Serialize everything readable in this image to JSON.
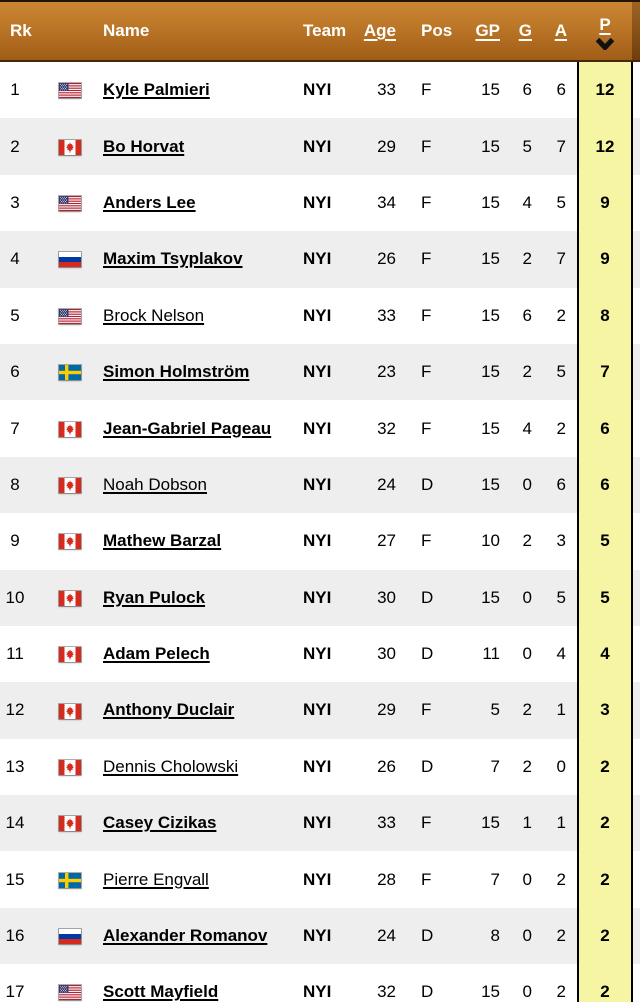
{
  "table": {
    "columns": [
      {
        "key": "rank",
        "label": "Rk",
        "sortable": false
      },
      {
        "key": "flag",
        "label": "",
        "sortable": false
      },
      {
        "key": "name",
        "label": "Name",
        "sortable": false
      },
      {
        "key": "team",
        "label": "Team",
        "sortable": false
      },
      {
        "key": "age",
        "label": "Age",
        "sortable": true
      },
      {
        "key": "pos",
        "label": "Pos",
        "sortable": false
      },
      {
        "key": "gp",
        "label": "GP",
        "sortable": true
      },
      {
        "key": "g",
        "label": "G",
        "sortable": true
      },
      {
        "key": "a",
        "label": "A",
        "sortable": true
      },
      {
        "key": "p",
        "label": "P",
        "sortable": true
      }
    ],
    "sort": {
      "column": "P",
      "direction": "desc"
    },
    "rows": [
      {
        "rank": "1",
        "flag": "us",
        "name": "Kyle Palmieri",
        "name_bold": true,
        "team": "NYI",
        "age": "33",
        "pos": "F",
        "gp": "15",
        "g": "6",
        "a": "6",
        "p": "12"
      },
      {
        "rank": "2",
        "flag": "ca",
        "name": "Bo Horvat",
        "name_bold": true,
        "team": "NYI",
        "age": "29",
        "pos": "F",
        "gp": "15",
        "g": "5",
        "a": "7",
        "p": "12"
      },
      {
        "rank": "3",
        "flag": "us",
        "name": "Anders Lee",
        "name_bold": true,
        "team": "NYI",
        "age": "34",
        "pos": "F",
        "gp": "15",
        "g": "4",
        "a": "5",
        "p": "9"
      },
      {
        "rank": "4",
        "flag": "ru",
        "name": "Maxim Tsyplakov",
        "name_bold": true,
        "team": "NYI",
        "age": "26",
        "pos": "F",
        "gp": "15",
        "g": "2",
        "a": "7",
        "p": "9"
      },
      {
        "rank": "5",
        "flag": "us",
        "name": "Brock Nelson",
        "name_bold": false,
        "team": "NYI",
        "age": "33",
        "pos": "F",
        "gp": "15",
        "g": "6",
        "a": "2",
        "p": "8"
      },
      {
        "rank": "6",
        "flag": "se",
        "name": "Simon Holmström",
        "name_bold": true,
        "team": "NYI",
        "age": "23",
        "pos": "F",
        "gp": "15",
        "g": "2",
        "a": "5",
        "p": "7"
      },
      {
        "rank": "7",
        "flag": "ca",
        "name": "Jean-Gabriel Pageau",
        "name_bold": true,
        "team": "NYI",
        "age": "32",
        "pos": "F",
        "gp": "15",
        "g": "4",
        "a": "2",
        "p": "6"
      },
      {
        "rank": "8",
        "flag": "ca",
        "name": "Noah Dobson",
        "name_bold": false,
        "team": "NYI",
        "age": "24",
        "pos": "D",
        "gp": "15",
        "g": "0",
        "a": "6",
        "p": "6"
      },
      {
        "rank": "9",
        "flag": "ca",
        "name": "Mathew Barzal",
        "name_bold": true,
        "team": "NYI",
        "age": "27",
        "pos": "F",
        "gp": "10",
        "g": "2",
        "a": "3",
        "p": "5"
      },
      {
        "rank": "10",
        "flag": "ca",
        "name": "Ryan Pulock",
        "name_bold": true,
        "team": "NYI",
        "age": "30",
        "pos": "D",
        "gp": "15",
        "g": "0",
        "a": "5",
        "p": "5"
      },
      {
        "rank": "11",
        "flag": "ca",
        "name": "Adam Pelech",
        "name_bold": true,
        "team": "NYI",
        "age": "30",
        "pos": "D",
        "gp": "11",
        "g": "0",
        "a": "4",
        "p": "4"
      },
      {
        "rank": "12",
        "flag": "ca",
        "name": "Anthony Duclair",
        "name_bold": true,
        "team": "NYI",
        "age": "29",
        "pos": "F",
        "gp": "5",
        "g": "2",
        "a": "1",
        "p": "3"
      },
      {
        "rank": "13",
        "flag": "ca",
        "name": "Dennis Cholowski",
        "name_bold": false,
        "team": "NYI",
        "age": "26",
        "pos": "D",
        "gp": "7",
        "g": "2",
        "a": "0",
        "p": "2"
      },
      {
        "rank": "14",
        "flag": "ca",
        "name": "Casey Cizikas",
        "name_bold": true,
        "team": "NYI",
        "age": "33",
        "pos": "F",
        "gp": "15",
        "g": "1",
        "a": "1",
        "p": "2"
      },
      {
        "rank": "15",
        "flag": "se",
        "name": "Pierre Engvall",
        "name_bold": false,
        "team": "NYI",
        "age": "28",
        "pos": "F",
        "gp": "7",
        "g": "0",
        "a": "2",
        "p": "2"
      },
      {
        "rank": "16",
        "flag": "ru",
        "name": "Alexander Romanov",
        "name_bold": true,
        "team": "NYI",
        "age": "24",
        "pos": "D",
        "gp": "8",
        "g": "0",
        "a": "2",
        "p": "2"
      },
      {
        "rank": "17",
        "flag": "us",
        "name": "Scott Mayfield",
        "name_bold": true,
        "team": "NYI",
        "age": "32",
        "pos": "D",
        "gp": "15",
        "g": "0",
        "a": "2",
        "p": "2"
      }
    ]
  },
  "colors": {
    "header_gradient_top": "#ca8733",
    "header_gradient_bottom": "#a05d16",
    "header_text": "#ffffff",
    "sorted_column_bg": "#f5f5a3",
    "sorted_column_border": "#000000",
    "row_alt_bg": "#efeeee",
    "row_bg": "#ffffff",
    "link_color": "#000000",
    "sort_caret": "#111111"
  }
}
